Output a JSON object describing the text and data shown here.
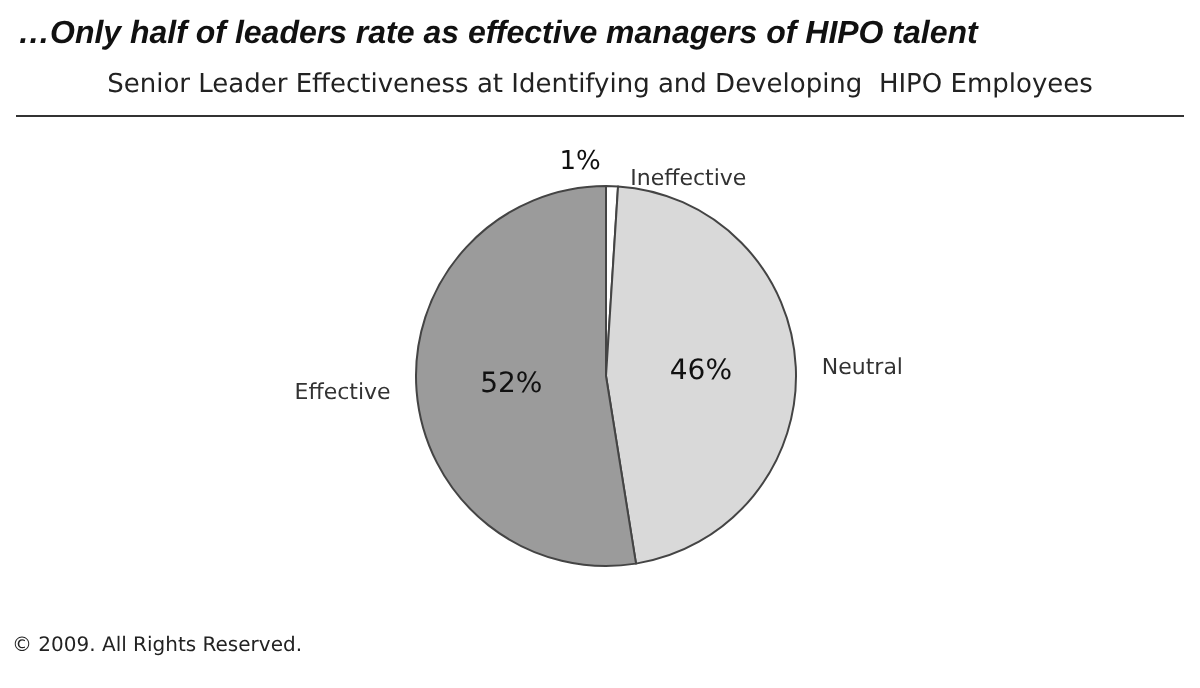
{
  "chart_data": {
    "type": "pie",
    "title": "…Only half of leaders rate as effective managers of HIPO talent",
    "subtitle": "Senior Leader Effectiveness at Identifying and Developing  HIPO Employees",
    "categories": [
      "Ineffective",
      "Neutral",
      "Effective"
    ],
    "values": [
      1,
      46,
      52
    ],
    "value_labels": [
      "1%",
      "46%",
      "52%"
    ],
    "colors": [
      "#ffffff",
      "#d9d9d9",
      "#9b9b9b"
    ],
    "legend": false,
    "annotations": [
      "© 2009. All Rights Reserved."
    ]
  }
}
